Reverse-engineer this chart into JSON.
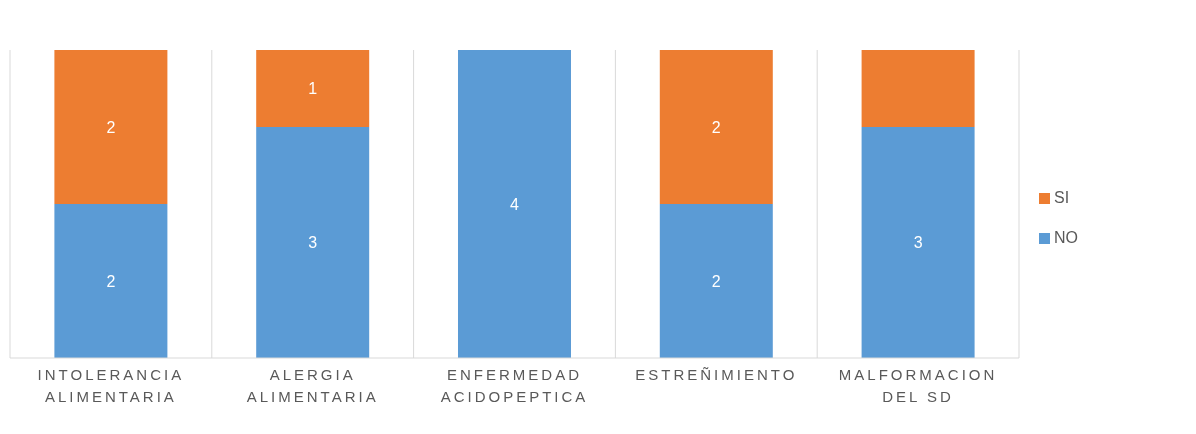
{
  "chart_data": {
    "type": "bar",
    "stacked": true,
    "categories": [
      "INTOLERANCIA ALIMENTARIA",
      "ALERGIA ALIMENTARIA",
      "ENFERMEDAD ACIDOPEPTICA",
      "ESTREÑIMIENTO",
      "MALFORMACION DEL SD"
    ],
    "series": [
      {
        "name": "NO",
        "color": "#5b9bd5",
        "values": [
          2,
          3,
          4,
          2,
          3
        ],
        "value_labels": [
          "2",
          "3",
          "4",
          "2",
          "3"
        ]
      },
      {
        "name": "SI",
        "color": "#ed7d31",
        "values": [
          2,
          1,
          null,
          2,
          1
        ],
        "value_labels": [
          "2",
          "1",
          null,
          "2",
          null
        ]
      }
    ],
    "grid": "x",
    "legend": "right"
  }
}
